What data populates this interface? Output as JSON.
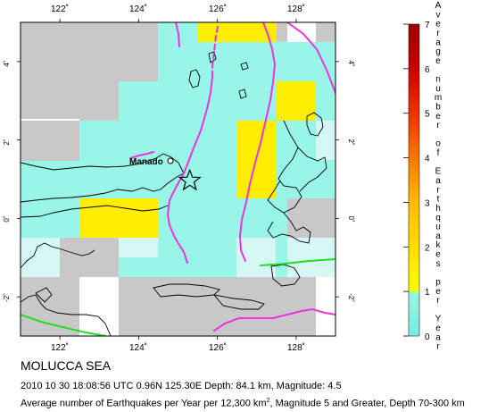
{
  "map": {
    "region_title": "MOLUCCA SEA",
    "event_line": "2010 10 30 18:08:56 UTC 0.96N 125.30E Depth: 84.1 km, Magnitude: 4.5",
    "legend_line_prefix": "Average number of Earthquakes per Year per 12,300 km",
    "legend_line_sup": "2",
    "legend_line_suffix": ", Magnitude 5 and Greater, Depth 70-300 km",
    "city": "Manado",
    "extent": {
      "lon_min": 121.0,
      "lon_max": 129.0,
      "lat_min": -3.0,
      "lat_max": 5.0
    },
    "epicenter": {
      "lon": 125.3,
      "lat": 0.96
    },
    "x_ticks": [
      {
        "value": 122,
        "label": "122˚"
      },
      {
        "value": 124,
        "label": "124˚"
      },
      {
        "value": 126,
        "label": "126˚"
      },
      {
        "value": 128,
        "label": "128˚"
      }
    ],
    "y_ticks": [
      {
        "value": 4,
        "label": "4˚"
      },
      {
        "value": 2,
        "label": "2˚"
      },
      {
        "value": 0,
        "label": "0˚"
      },
      {
        "value": -2,
        "label": "-2˚"
      }
    ],
    "colors": {
      "cell_zero": "#c8c8c8",
      "cell_low": "#99f5e8",
      "cell_very_low": "#d6f8f5",
      "cell_one": "#ffee00",
      "slab": "#ee33dd",
      "fault": "#22dd22",
      "star": "#000000"
    }
  },
  "colorbar": {
    "title": "Average number of Earthquakes per Year",
    "ticks": [
      "7",
      "6",
      "5",
      "4",
      "3",
      "2",
      "1",
      "0"
    ],
    "min": 0,
    "max": 7,
    "stops": [
      "#77eedd",
      "#ffff00",
      "#ffaa00",
      "#ff5500",
      "#dd0000",
      "#aa0000"
    ]
  }
}
